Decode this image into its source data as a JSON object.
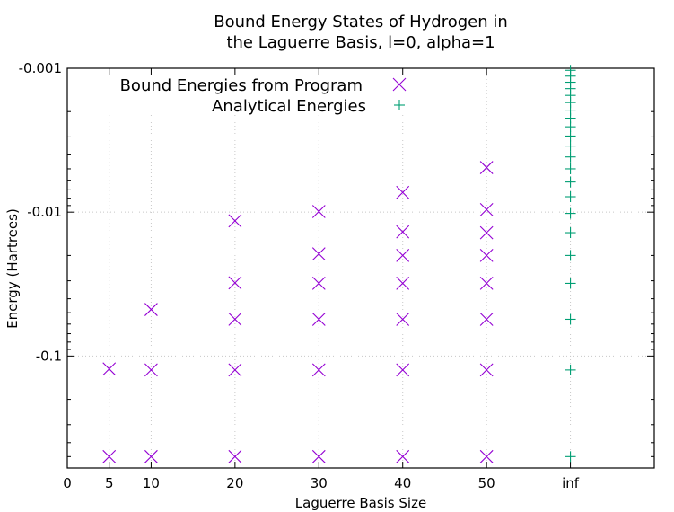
{
  "chart_data": {
    "type": "scatter",
    "title_lines": [
      "Bound Energy States of Hydrogen in",
      "the Laguerre Basis, l=0, alpha=1"
    ],
    "xlabel": "Laguerre Basis Size",
    "ylabel": "Energy (Hartrees)",
    "x_ticks": [
      {
        "label": "0",
        "pos": 0
      },
      {
        "label": "5",
        "pos": 5
      },
      {
        "label": "10",
        "pos": 10
      },
      {
        "label": "20",
        "pos": 20
      },
      {
        "label": "30",
        "pos": 30
      },
      {
        "label": "40",
        "pos": 40
      },
      {
        "label": "50",
        "pos": 50
      },
      {
        "label": "inf",
        "pos": 60
      }
    ],
    "x_grid": [
      "5",
      "10",
      "20",
      "30",
      "40",
      "50",
      "inf"
    ],
    "x_range": [
      0,
      70
    ],
    "y_scale": "log",
    "y_axis_reversed": true,
    "y_ticks": [
      {
        "label": "-0.001",
        "value": -0.001
      },
      {
        "label": "-0.01",
        "value": -0.01
      },
      {
        "label": "-0.1",
        "value": -0.1
      }
    ],
    "y_range": [
      -0.001,
      -0.6
    ],
    "grid": true,
    "legend_position": "top-left",
    "series": [
      {
        "name": "Bound Energies from Program",
        "marker": "x",
        "color": "#9400d3",
        "points": [
          {
            "x": "5",
            "y": -0.5
          },
          {
            "x": "5",
            "y": -0.123
          },
          {
            "x": "10",
            "y": -0.5
          },
          {
            "x": "10",
            "y": -0.125
          },
          {
            "x": "10",
            "y": -0.0475
          },
          {
            "x": "20",
            "y": -0.5
          },
          {
            "x": "20",
            "y": -0.125
          },
          {
            "x": "20",
            "y": -0.0555
          },
          {
            "x": "20",
            "y": -0.031
          },
          {
            "x": "20",
            "y": -0.0115
          },
          {
            "x": "30",
            "y": -0.5
          },
          {
            "x": "30",
            "y": -0.125
          },
          {
            "x": "30",
            "y": -0.0556
          },
          {
            "x": "30",
            "y": -0.0312
          },
          {
            "x": "30",
            "y": -0.0195
          },
          {
            "x": "30",
            "y": -0.0099
          },
          {
            "x": "40",
            "y": -0.5
          },
          {
            "x": "40",
            "y": -0.125
          },
          {
            "x": "40",
            "y": -0.0556
          },
          {
            "x": "40",
            "y": -0.0312
          },
          {
            "x": "40",
            "y": -0.02
          },
          {
            "x": "40",
            "y": -0.0137
          },
          {
            "x": "40",
            "y": -0.0073
          },
          {
            "x": "50",
            "y": -0.5
          },
          {
            "x": "50",
            "y": -0.125
          },
          {
            "x": "50",
            "y": -0.0556
          },
          {
            "x": "50",
            "y": -0.0312
          },
          {
            "x": "50",
            "y": -0.02
          },
          {
            "x": "50",
            "y": -0.0139
          },
          {
            "x": "50",
            "y": -0.0096
          },
          {
            "x": "50",
            "y": -0.0049
          }
        ]
      },
      {
        "name": "Analytical Energies",
        "marker": "+",
        "color": "#009e73",
        "n_range": [
          1,
          23
        ],
        "points_x": "inf"
      }
    ]
  }
}
